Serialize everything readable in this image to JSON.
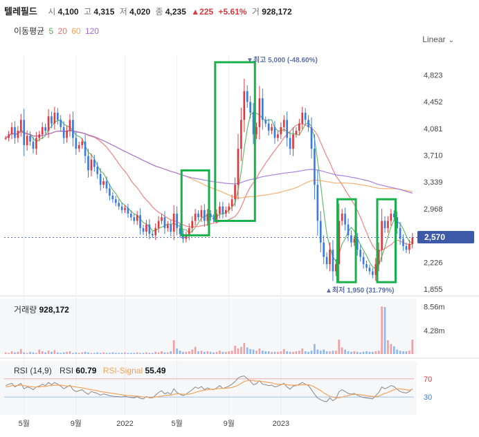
{
  "header": {
    "name": "텔레필드",
    "open_label": "시",
    "open": "4,100",
    "high_label": "고",
    "high": "4,315",
    "low_label": "저",
    "low": "4,020",
    "close_label": "종",
    "close": "4,235",
    "change": "▲225",
    "change_pct": "+5.61%",
    "volume_label": "거",
    "volume": "928,172"
  },
  "moving_avg": {
    "label": "이동평균",
    "p5": "5",
    "p20": "20",
    "p60": "60",
    "p120": "120"
  },
  "scale_mode": "Linear",
  "current_price_tag": "2,570",
  "annotations": {
    "high": "▼최고 5,000 (-48.60%)",
    "low": "▲최저 1,950 (31.79%)"
  },
  "volume_panel": {
    "label": "거래량",
    "value": "928,172",
    "ticks": [
      "8.56m",
      "4.28m"
    ]
  },
  "rsi_panel": {
    "label": "RSI (14,9)",
    "rsi_label": "RSI",
    "rsi_value": "60.79",
    "signal_label": "RSI-Signal",
    "signal_value": "55.49",
    "levels": [
      "70",
      "30"
    ]
  },
  "colors": {
    "up": "#e0383e",
    "down": "#3a7be0",
    "ma5": "#4caf50",
    "ma20": "#ef6b6b",
    "ma60": "#f3a35a",
    "ma120": "#9b6cdb",
    "highlight": "#18b04a",
    "tag": "#3d5aa8"
  },
  "chart_data": {
    "type": "candlestick",
    "y_ticks": [
      4823,
      4452,
      4081,
      3710,
      3339,
      2968,
      2597,
      2226,
      1855
    ],
    "y_tick_labels": [
      "4,823",
      "4,452",
      "4,081",
      "3,710",
      "3,339",
      "2,968",
      "2,597",
      "2,226",
      "1,855"
    ],
    "ylim": [
      1855,
      5000
    ],
    "x_tick_labels": [
      "5월",
      "9월",
      "2022",
      "5월",
      "9월",
      "2023"
    ],
    "price_high": 5000,
    "price_low": 1950,
    "last_close": 2570,
    "highlight_boxes": [
      {
        "from": 2600,
        "to": 3500
      },
      {
        "from": 2800,
        "to": 5000
      },
      {
        "from": 1950,
        "to": 3100
      },
      {
        "from": 1950,
        "to": 3100
      }
    ],
    "closes": [
      3950,
      4000,
      4100,
      3950,
      4050,
      4200,
      3850,
      3980,
      3900,
      3800,
      3950,
      4000,
      4100,
      4050,
      4250,
      4150,
      4300,
      4200,
      4100,
      3950,
      4050,
      4200,
      3950,
      3800,
      3850,
      3900,
      3700,
      3500,
      3650,
      3550,
      3450,
      3300,
      3350,
      3250,
      3150,
      3100,
      3050,
      3000,
      2950,
      2980,
      2900,
      2850,
      2800,
      2880,
      2700,
      2650,
      2750,
      2620,
      2600,
      2700,
      2800,
      2850,
      2700,
      2750,
      2650,
      2900,
      2700,
      2620,
      2550,
      2600,
      2700,
      2800,
      2900,
      2850,
      2950,
      2800,
      2900,
      2850,
      2820,
      2900,
      3000,
      2900,
      2950,
      3000,
      3100,
      3300,
      3800,
      4200,
      4600,
      4450,
      4300,
      4000,
      4100,
      4500,
      4200,
      4150,
      4050,
      4100,
      3950,
      4000,
      4100,
      4200,
      3950,
      3800,
      4000,
      4050,
      4150,
      4300,
      4200,
      4100,
      3800,
      3300,
      2800,
      2500,
      2300,
      2200,
      2400,
      2100,
      2200,
      2800,
      2900,
      2750,
      2600,
      2500,
      2550,
      2400,
      2300,
      2200,
      2150,
      2100,
      2050,
      2200,
      2400,
      2800,
      2700,
      2800,
      2900,
      2850,
      2700,
      2550,
      2450,
      2400,
      2480,
      2570
    ],
    "volumes": [
      0.3,
      0.2,
      0.5,
      0.3,
      0.4,
      0.9,
      0.3,
      0.2,
      0.4,
      0.3,
      0.2,
      0.8,
      0.5,
      0.3,
      0.6,
      0.4,
      0.7,
      0.3,
      0.2,
      0.3,
      0.4,
      0.5,
      0.2,
      0.3,
      0.2,
      0.3,
      0.4,
      0.3,
      0.2,
      0.2,
      0.3,
      0.2,
      0.3,
      0.2,
      0.2,
      0.3,
      0.2,
      0.2,
      0.2,
      0.3,
      0.2,
      0.2,
      0.2,
      0.3,
      0.2,
      0.2,
      0.3,
      0.2,
      0.2,
      0.4,
      0.3,
      0.5,
      0.3,
      0.3,
      0.5,
      2.5,
      1.0,
      0.6,
      0.4,
      0.4,
      0.5,
      0.8,
      1.3,
      0.5,
      0.6,
      0.4,
      0.5,
      0.4,
      0.3,
      0.4,
      0.6,
      0.4,
      0.4,
      0.5,
      0.6,
      1.5,
      1.0,
      1.3,
      2.0,
      1.2,
      0.9,
      0.8,
      0.6,
      1.0,
      0.6,
      0.5,
      0.5,
      0.4,
      0.4,
      0.4,
      0.5,
      0.9,
      0.5,
      0.4,
      0.4,
      0.5,
      0.6,
      1.0,
      0.5,
      0.4,
      0.6,
      1.8,
      0.8,
      0.6,
      0.8,
      0.5,
      0.5,
      0.6,
      0.6,
      2.6,
      1.2,
      0.8,
      0.5,
      0.4,
      0.5,
      0.4,
      0.3,
      0.4,
      0.5,
      0.4,
      0.4,
      0.5,
      0.6,
      8.6,
      8.5,
      2.5,
      1.8,
      1.4,
      0.8,
      0.6,
      0.5,
      0.5,
      0.6,
      2.6
    ],
    "rsi": [
      55,
      58,
      60,
      52,
      56,
      60,
      48,
      52,
      50,
      46,
      52,
      54,
      58,
      55,
      62,
      57,
      62,
      58,
      54,
      48,
      52,
      56,
      46,
      42,
      44,
      46,
      40,
      36,
      42,
      40,
      38,
      34,
      37,
      35,
      33,
      32,
      31,
      31,
      30,
      32,
      30,
      29,
      28,
      31,
      27,
      26,
      31,
      28,
      28,
      34,
      40,
      44,
      37,
      40,
      36,
      48,
      40,
      36,
      33,
      36,
      41,
      46,
      52,
      49,
      53,
      46,
      50,
      47,
      46,
      50,
      55,
      49,
      51,
      54,
      58,
      64,
      72,
      75,
      76,
      70,
      65,
      57,
      59,
      66,
      58,
      57,
      55,
      56,
      52,
      54,
      57,
      60,
      52,
      47,
      54,
      55,
      58,
      62,
      58,
      55,
      46,
      36,
      28,
      24,
      21,
      20,
      28,
      22,
      26,
      42,
      46,
      42,
      38,
      36,
      38,
      34,
      31,
      29,
      28,
      27,
      26,
      33,
      40,
      52,
      48,
      51,
      55,
      53,
      47,
      42,
      40,
      39,
      42,
      48
    ],
    "rsi_signal": [
      52,
      53,
      55,
      55,
      55,
      56,
      55,
      54,
      53,
      52,
      52,
      52,
      53,
      53,
      55,
      55,
      56,
      56,
      56,
      55,
      54,
      54,
      53,
      52,
      51,
      50,
      49,
      47,
      46,
      45,
      44,
      42,
      41,
      40,
      39,
      38,
      37,
      36,
      35,
      34,
      33,
      33,
      32,
      32,
      31,
      30,
      30,
      29,
      29,
      30,
      31,
      32,
      33,
      34,
      34,
      36,
      37,
      37,
      36,
      36,
      36,
      38,
      40,
      42,
      44,
      45,
      46,
      47,
      47,
      48,
      49,
      49,
      49,
      50,
      51,
      53,
      56,
      60,
      64,
      66,
      67,
      66,
      65,
      65,
      64,
      63,
      62,
      61,
      59,
      58,
      58,
      58,
      57,
      56,
      56,
      56,
      56,
      57,
      57,
      57,
      55,
      52,
      48,
      44,
      39,
      35,
      32,
      30,
      28,
      28,
      30,
      32,
      33,
      35,
      36,
      36,
      35,
      34,
      33,
      32,
      31,
      31,
      32,
      35,
      38,
      40,
      43,
      46,
      48,
      48,
      47,
      46,
      45,
      47
    ]
  }
}
